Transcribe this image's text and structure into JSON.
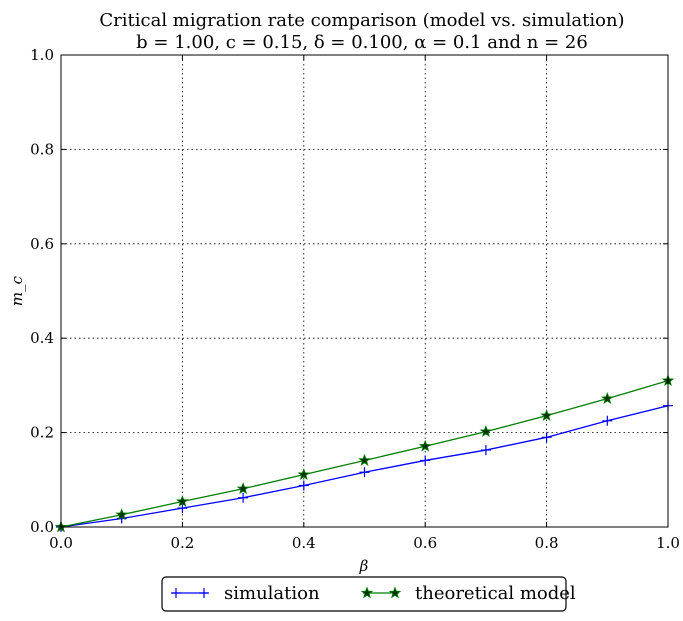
{
  "chart_data": {
    "type": "line",
    "title": "Critical migration rate comparison (model vs. simulation)",
    "subtitle": "b = 1.00, c = 0.15, δ = 0.100, α = 0.1 and n = 26",
    "xlabel": "β",
    "ylabel": "m_c",
    "xlim": [
      0,
      1
    ],
    "ylim": [
      0,
      1
    ],
    "x_ticks": [
      "0.0",
      "0.2",
      "0.4",
      "0.6",
      "0.8",
      "1.0"
    ],
    "y_ticks": [
      "0.0",
      "0.2",
      "0.4",
      "0.6",
      "0.8",
      "1.0"
    ],
    "grid": true,
    "legend_position": "bottom-center, below plot",
    "x": [
      0.0,
      0.1,
      0.2,
      0.3,
      0.4,
      0.5,
      0.6,
      0.7,
      0.8,
      0.9,
      1.0
    ],
    "series": [
      {
        "name": "simulation",
        "color": "#0000ff",
        "marker": "plus",
        "values": [
          0.0,
          0.018,
          0.04,
          0.062,
          0.088,
          0.116,
          0.141,
          0.163,
          0.19,
          0.225,
          0.257
        ]
      },
      {
        "name": "theoretical model",
        "color": "#007f00",
        "marker": "star",
        "values": [
          0.0,
          0.026,
          0.054,
          0.081,
          0.111,
          0.141,
          0.171,
          0.202,
          0.236,
          0.272,
          0.31
        ]
      }
    ]
  }
}
